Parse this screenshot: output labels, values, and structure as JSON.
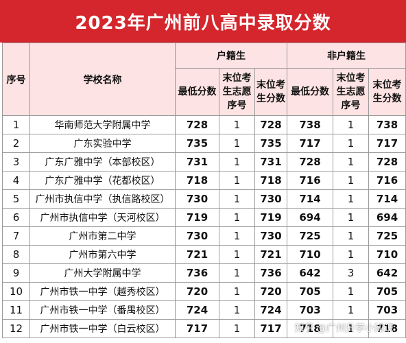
{
  "title": "2023年广州前八高中录取分数",
  "headers": {
    "index": "序号",
    "school": "学校名称",
    "hukou_group": "户籍生",
    "non_hukou_group": "非户籍生",
    "min_score": "最低分数",
    "last_rank": "末位考生志愿序号",
    "last_score": "末位考生分数"
  },
  "rows": [
    {
      "idx": "1",
      "school": "华南师范大学附属中学",
      "h_min": "728",
      "h_seq": "1",
      "h_last": "728",
      "n_min": "738",
      "n_seq": "1",
      "n_last": "738"
    },
    {
      "idx": "2",
      "school": "广东实验中学",
      "h_min": "735",
      "h_seq": "1",
      "h_last": "735",
      "n_min": "717",
      "n_seq": "1",
      "n_last": "717"
    },
    {
      "idx": "3",
      "school": "广东广雅中学（本部校区）",
      "h_min": "731",
      "h_seq": "1",
      "h_last": "731",
      "n_min": "728",
      "n_seq": "1",
      "n_last": "728"
    },
    {
      "idx": "4",
      "school": "广东广雅中学（花都校区）",
      "h_min": "718",
      "h_seq": "1",
      "h_last": "718",
      "n_min": "716",
      "n_seq": "1",
      "n_last": "716"
    },
    {
      "idx": "5",
      "school": "广州市执信中学（执信路校区）",
      "h_min": "730",
      "h_seq": "1",
      "h_last": "730",
      "n_min": "714",
      "n_seq": "1",
      "n_last": "714"
    },
    {
      "idx": "6",
      "school": "广州市执信中学（天河校区）",
      "h_min": "719",
      "h_seq": "1",
      "h_last": "719",
      "n_min": "694",
      "n_seq": "1",
      "n_last": "694"
    },
    {
      "idx": "7",
      "school": "广州市第二中学",
      "h_min": "730",
      "h_seq": "1",
      "h_last": "730",
      "n_min": "725",
      "n_seq": "1",
      "n_last": "725"
    },
    {
      "idx": "8",
      "school": "广州市第六中学",
      "h_min": "721",
      "h_seq": "1",
      "h_last": "721",
      "n_min": "710",
      "n_seq": "1",
      "n_last": "710"
    },
    {
      "idx": "9",
      "school": "广州大学附属中学",
      "h_min": "736",
      "h_seq": "1",
      "h_last": "736",
      "n_min": "642",
      "n_seq": "3",
      "n_last": "642"
    },
    {
      "idx": "10",
      "school": "广州市铁一中学（越秀校区）",
      "h_min": "720",
      "h_seq": "1",
      "h_last": "720",
      "n_min": "705",
      "n_seq": "1",
      "n_last": "705"
    },
    {
      "idx": "11",
      "school": "广州市铁一中学（番禺校区）",
      "h_min": "724",
      "h_seq": "1",
      "h_last": "724",
      "n_min": "703",
      "n_seq": "1",
      "n_last": "703"
    },
    {
      "idx": "12",
      "school": "广州市铁一中学（白云校区）",
      "h_min": "717",
      "h_seq": "1",
      "h_last": "717",
      "n_min": "718",
      "n_seq": "1",
      "n_last": "718"
    }
  ],
  "watermark": "知乎 @广州升学小知识",
  "colors": {
    "title_bg": "#d4262c",
    "header_bg": "#fde3e3",
    "border": "#9a9a9a"
  }
}
